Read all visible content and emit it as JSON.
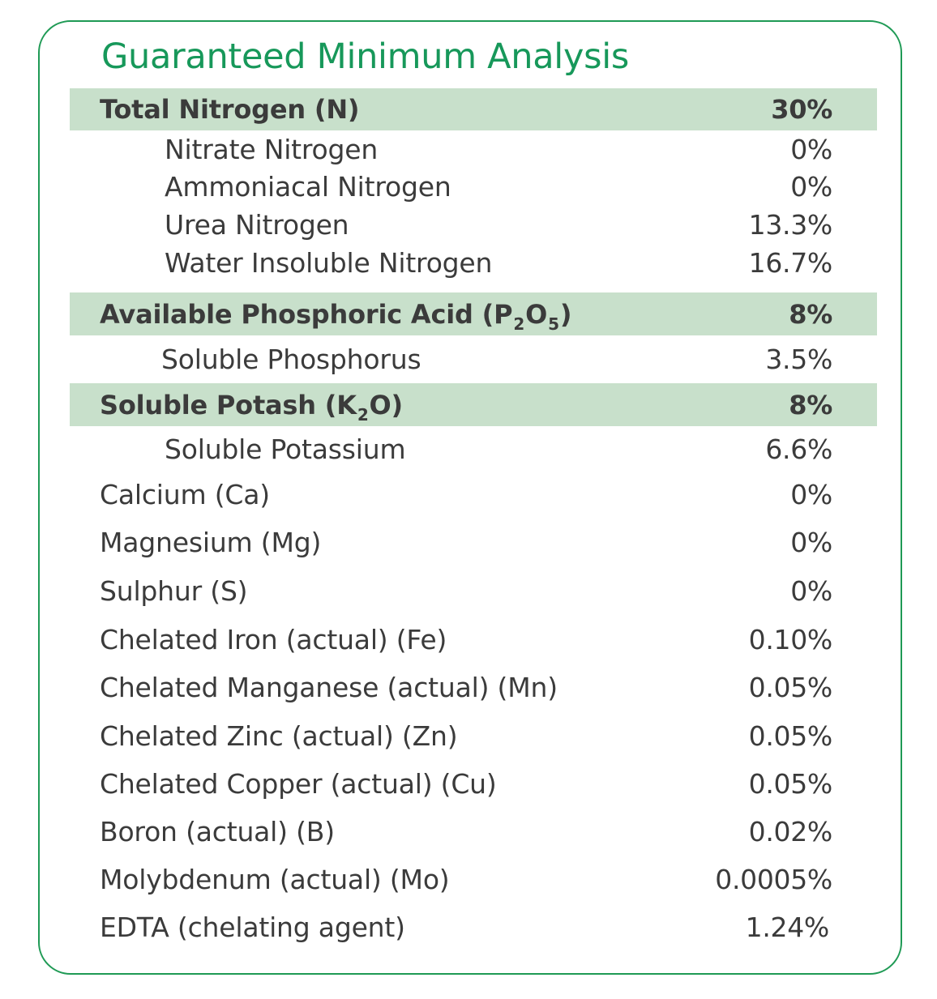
{
  "title": "Guaranteed Minimum Analysis",
  "rows": [
    {
      "label": "Total Nitrogen (N)",
      "value": "30%"
    },
    {
      "label": "Nitrate Nitrogen",
      "value": "0%"
    },
    {
      "label": "Ammoniacal Nitrogen",
      "value": "0%"
    },
    {
      "label": "Urea Nitrogen",
      "value": "13.3%"
    },
    {
      "label": "Water Insoluble Nitrogen",
      "value": "16.7%"
    },
    {
      "label_parts": [
        "Available Phosphoric Acid (P",
        "2",
        "O",
        "5",
        ")"
      ],
      "value": "8%"
    },
    {
      "label": "Soluble Phosphorus",
      "value": "3.5%"
    },
    {
      "label_parts": [
        "Soluble Potash (K",
        "2",
        "O)"
      ],
      "value": "8%"
    },
    {
      "label": "Soluble Potassium",
      "value": "6.6%"
    },
    {
      "label": "Calcium (Ca)",
      "value": "0%"
    },
    {
      "label": "Magnesium (Mg)",
      "value": "0%"
    },
    {
      "label": "Sulphur (S)",
      "value": "0%"
    },
    {
      "label": "Chelated Iron (actual) (Fe)",
      "value": "0.10%"
    },
    {
      "label": "Chelated Manganese (actual) (Mn)",
      "value": "0.05%"
    },
    {
      "label": "Chelated Zinc (actual) (Zn)",
      "value": "0.05%"
    },
    {
      "label": "Chelated Copper (actual) (Cu)",
      "value": "0.05%"
    },
    {
      "label": "Boron (actual) (B)",
      "value": "0.02%"
    },
    {
      "label": "Molybdenum (actual) (Mo)",
      "value": "0.0005%"
    },
    {
      "label": "EDTA (chelating agent)",
      "value": "1.24%"
    }
  ]
}
